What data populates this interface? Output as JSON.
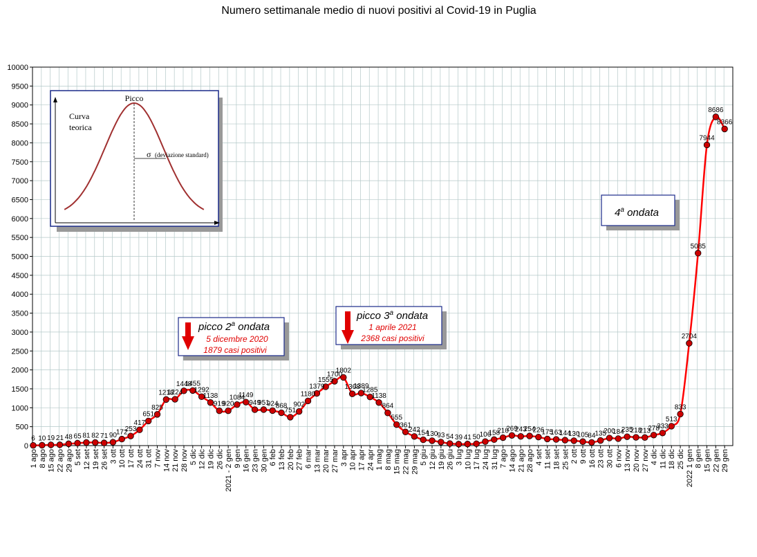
{
  "chart_data": {
    "type": "line",
    "title": "Numero settimanale medio di nuovi positivi al Covid-19 in Puglia",
    "ylim": [
      0,
      10000
    ],
    "yticks": [
      0,
      500,
      1000,
      1500,
      2000,
      2500,
      3000,
      3500,
      4000,
      4500,
      5000,
      5500,
      6000,
      6500,
      7000,
      7500,
      8000,
      8500,
      9000,
      9500,
      10000
    ],
    "grid": true,
    "line_color": "#ff0000",
    "marker_color": "#cc0000",
    "x_labels": [
      "1 ago",
      "8 ago",
      "15 ago",
      "22 ago",
      "29 ago",
      "5 set",
      "12 set",
      "19 set",
      "26 set",
      "3 ott",
      "10 ott",
      "17 ott",
      "24 ott",
      "31 ott",
      "7 nov",
      "14 nov",
      "21 nov",
      "28 nov",
      "5 dic",
      "12 dic",
      "19 dic",
      "26 dic",
      "2021 - 2 gen",
      "9 gen",
      "16 gen",
      "23 gen",
      "30 gen",
      "6 feb",
      "13 feb",
      "20 feb",
      "27 feb",
      "6 mar",
      "13 mar",
      "20 mar",
      "27 mar",
      "3 apr",
      "10 apr",
      "17 apr",
      "24 apr",
      "1 mag",
      "8 mag",
      "15 mag",
      "22 mag",
      "29 mag",
      "5 giu",
      "12 giu",
      "19 giu",
      "26 giu",
      "3 lug",
      "10 lug",
      "17 lug",
      "24 lug",
      "31 lug",
      "7 ago",
      "14 ago",
      "21 ago",
      "28 ago",
      "4 set",
      "11 set",
      "18 set",
      "25 set",
      "2 ott",
      "9 ott",
      "16 ott",
      "23 ott",
      "30 ott",
      "6 nov",
      "13 nov",
      "20 nov",
      "27 nov",
      "4 dic",
      "11 dic",
      "18 dic",
      "25 dic",
      "2022 1 gen",
      "8 gen",
      "15 gen",
      "22 gen",
      "29 gen"
    ],
    "values": [
      6,
      10,
      19,
      21,
      48,
      65,
      81,
      82,
      71,
      90,
      172,
      253,
      417,
      651,
      825,
      1218,
      1224,
      1448,
      1455,
      1292,
      1138,
      919,
      920,
      1084,
      1149,
      949,
      951,
      924,
      868,
      751,
      902,
      1180,
      1379,
      1555,
      1700,
      1802,
      1368,
      1389,
      1285,
      1138,
      864,
      555,
      361,
      242,
      154,
      130,
      93,
      54,
      39,
      41,
      50,
      106,
      158,
      210,
      269,
      243,
      254,
      226,
      175,
      163,
      144,
      130,
      105,
      84,
      135,
      200,
      184,
      235,
      218,
      213,
      278,
      333,
      513,
      833,
      2704,
      5085,
      7944,
      8686,
      8366
    ],
    "data_labels": [
      "6",
      "10",
      "19",
      "21",
      "48",
      "65",
      "81",
      "82",
      "71",
      "90",
      "172",
      "253",
      "417",
      "651",
      "825",
      "1218",
      "1224",
      "1448",
      "1455",
      "1292",
      "1138",
      "919",
      "920",
      "1084",
      "1149",
      "949",
      "951",
      "924",
      "868",
      "751",
      "902",
      "1180",
      "1379",
      "1555",
      "1700",
      "1802",
      "1368",
      "1389",
      "1285",
      "1138",
      "864",
      "555",
      "361",
      "242",
      "154",
      "130",
      "93",
      "54",
      "39",
      "41",
      "50",
      "106",
      "158",
      "210",
      "269",
      "243",
      "254",
      "226",
      "175",
      "163",
      "144",
      "130",
      "105",
      "84",
      "135",
      "200",
      "184",
      "235",
      "218",
      "213",
      "278",
      "333",
      "513",
      "833",
      "2704",
      "5085",
      "7944",
      "8686",
      "8366"
    ]
  },
  "annotations": {
    "peak2": {
      "title_main": "picco 2",
      "title_sup": "a",
      "title_rest": " ondata",
      "date": "5 dicembre 2020",
      "cases": "1879 casi positivi"
    },
    "peak3": {
      "title_main": "picco 3",
      "title_sup": "a",
      "title_rest": " ondata",
      "date": "1 aprile 2021",
      "cases": "2368 casi positivi"
    },
    "wave4": {
      "title_main": "4",
      "title_sup": "a",
      "title_rest": " ondata"
    },
    "arrow_color": "#e00000"
  },
  "inset": {
    "peak_label": "Picco",
    "curve_label_1": "Curva",
    "curve_label_2": "teorica",
    "sigma_label": "σ",
    "sigma_desc": "(deviazione standard)",
    "curve_color": "#a03030"
  }
}
